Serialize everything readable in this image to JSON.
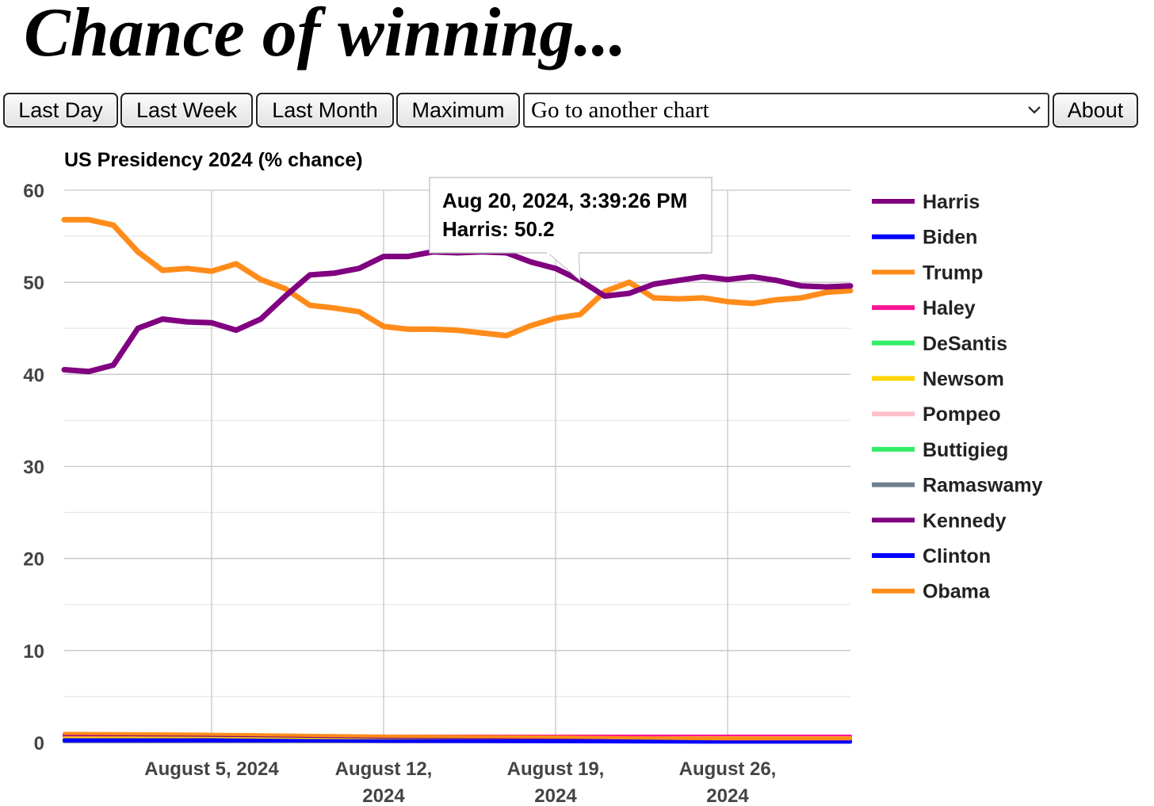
{
  "header": {
    "title": "Chance of winning..."
  },
  "toolbar": {
    "last_day": "Last Day",
    "last_week": "Last Week",
    "last_month": "Last Month",
    "maximum": "Maximum",
    "select_value": "Go to another chart",
    "about": "About"
  },
  "icons": {
    "select_arrow": "chevron-down-icon"
  },
  "chart_data": {
    "type": "line",
    "title": "US Presidency 2024 (% chance)",
    "ylim": [
      0,
      60
    ],
    "yticks": [
      0,
      10,
      20,
      30,
      40,
      50,
      60
    ],
    "xlim": [
      "2024-07-30",
      "2024-08-31"
    ],
    "xticks": [
      {
        "date": "2024-08-05",
        "lines": [
          "August 5, 2024"
        ]
      },
      {
        "date": "2024-08-12",
        "lines": [
          "August 12,",
          "2024"
        ]
      },
      {
        "date": "2024-08-19",
        "lines": [
          "August 19,",
          "2024"
        ]
      },
      {
        "date": "2024-08-26",
        "lines": [
          "August 26,",
          "2024"
        ]
      }
    ],
    "grid": true,
    "legend_position": "right",
    "series": [
      {
        "name": "Harris",
        "color": "#800080",
        "points": [
          [
            "2024-07-30",
            40.5
          ],
          [
            "2024-07-31",
            40.3
          ],
          [
            "2024-08-01",
            41
          ],
          [
            "2024-08-02",
            45
          ],
          [
            "2024-08-03",
            46
          ],
          [
            "2024-08-04",
            45.7
          ],
          [
            "2024-08-05",
            45.6
          ],
          [
            "2024-08-06",
            44.8
          ],
          [
            "2024-08-07",
            46
          ],
          [
            "2024-08-08",
            48.5
          ],
          [
            "2024-08-09",
            50.8
          ],
          [
            "2024-08-10",
            51
          ],
          [
            "2024-08-11",
            51.5
          ],
          [
            "2024-08-12",
            52.8
          ],
          [
            "2024-08-13",
            52.8
          ],
          [
            "2024-08-14",
            53.3
          ],
          [
            "2024-08-15",
            53.2
          ],
          [
            "2024-08-16",
            53.3
          ],
          [
            "2024-08-17",
            53.2
          ],
          [
            "2024-08-18",
            52.2
          ],
          [
            "2024-08-19",
            51.5
          ],
          [
            "2024-08-20",
            50.2
          ],
          [
            "2024-08-21",
            48.5
          ],
          [
            "2024-08-22",
            48.8
          ],
          [
            "2024-08-23",
            49.8
          ],
          [
            "2024-08-24",
            50.2
          ],
          [
            "2024-08-25",
            50.6
          ],
          [
            "2024-08-26",
            50.3
          ],
          [
            "2024-08-27",
            50.6
          ],
          [
            "2024-08-28",
            50.2
          ],
          [
            "2024-08-29",
            49.6
          ],
          [
            "2024-08-30",
            49.5
          ],
          [
            "2024-08-31",
            49.6
          ]
        ]
      },
      {
        "name": "Biden",
        "color": "#0000ff",
        "points": [
          [
            "2024-07-30",
            0.3
          ],
          [
            "2024-08-05",
            0.3
          ],
          [
            "2024-08-12",
            0.15
          ],
          [
            "2024-08-19",
            0.1
          ],
          [
            "2024-08-26",
            0.05
          ],
          [
            "2024-08-31",
            0.05
          ]
        ]
      },
      {
        "name": "Trump",
        "color": "#ff8c1a",
        "points": [
          [
            "2024-07-30",
            56.8
          ],
          [
            "2024-07-31",
            56.8
          ],
          [
            "2024-08-01",
            56.2
          ],
          [
            "2024-08-02",
            53.3
          ],
          [
            "2024-08-03",
            51.3
          ],
          [
            "2024-08-04",
            51.5
          ],
          [
            "2024-08-05",
            51.2
          ],
          [
            "2024-08-06",
            52
          ],
          [
            "2024-08-07",
            50.3
          ],
          [
            "2024-08-08",
            49.3
          ],
          [
            "2024-08-09",
            47.5
          ],
          [
            "2024-08-10",
            47.2
          ],
          [
            "2024-08-11",
            46.8
          ],
          [
            "2024-08-12",
            45.2
          ],
          [
            "2024-08-13",
            44.9
          ],
          [
            "2024-08-14",
            44.9
          ],
          [
            "2024-08-15",
            44.8
          ],
          [
            "2024-08-16",
            44.5
          ],
          [
            "2024-08-17",
            44.2
          ],
          [
            "2024-08-18",
            45.3
          ],
          [
            "2024-08-19",
            46.1
          ],
          [
            "2024-08-20",
            46.5
          ],
          [
            "2024-08-21",
            49
          ],
          [
            "2024-08-22",
            50
          ],
          [
            "2024-08-23",
            48.3
          ],
          [
            "2024-08-24",
            48.2
          ],
          [
            "2024-08-25",
            48.3
          ],
          [
            "2024-08-26",
            47.9
          ],
          [
            "2024-08-27",
            47.7
          ],
          [
            "2024-08-28",
            48.1
          ],
          [
            "2024-08-29",
            48.3
          ],
          [
            "2024-08-30",
            48.9
          ],
          [
            "2024-08-31",
            49.1
          ]
        ]
      },
      {
        "name": "Haley",
        "color": "#ff1493",
        "points": [
          [
            "2024-07-30",
            0.7
          ],
          [
            "2024-08-05",
            0.7
          ],
          [
            "2024-08-12",
            0.7
          ],
          [
            "2024-08-19",
            0.7
          ],
          [
            "2024-08-26",
            0.7
          ],
          [
            "2024-08-31",
            0.7
          ]
        ]
      },
      {
        "name": "DeSantis",
        "color": "#33ee66",
        "points": [
          [
            "2024-07-30",
            0.3
          ],
          [
            "2024-08-31",
            0.3
          ]
        ]
      },
      {
        "name": "Newsom",
        "color": "#ffd400",
        "points": [
          [
            "2024-07-30",
            0.5
          ],
          [
            "2024-08-31",
            0.5
          ]
        ]
      },
      {
        "name": "Pompeo",
        "color": "#ffc0cb",
        "points": [
          [
            "2024-07-30",
            0.1
          ],
          [
            "2024-08-31",
            0.1
          ]
        ]
      },
      {
        "name": "Buttigieg",
        "color": "#33ee66",
        "points": [
          [
            "2024-07-30",
            0.2
          ],
          [
            "2024-08-31",
            0.2
          ]
        ]
      },
      {
        "name": "Ramaswamy",
        "color": "#708090",
        "points": [
          [
            "2024-07-30",
            0.1
          ],
          [
            "2024-08-31",
            0.1
          ]
        ]
      },
      {
        "name": "Kennedy",
        "color": "#800080",
        "points": [
          [
            "2024-07-30",
            0.9
          ],
          [
            "2024-08-05",
            0.8
          ],
          [
            "2024-08-12",
            0.6
          ],
          [
            "2024-08-19",
            0.5
          ],
          [
            "2024-08-26",
            0.4
          ],
          [
            "2024-08-31",
            0.4
          ]
        ]
      },
      {
        "name": "Clinton",
        "color": "#0000ff",
        "points": [
          [
            "2024-07-30",
            0.2
          ],
          [
            "2024-08-31",
            0.2
          ]
        ]
      },
      {
        "name": "Obama",
        "color": "#ff8c1a",
        "points": [
          [
            "2024-07-30",
            1.0
          ],
          [
            "2024-08-05",
            0.9
          ],
          [
            "2024-08-12",
            0.7
          ],
          [
            "2024-08-19",
            0.6
          ],
          [
            "2024-08-26",
            0.4
          ],
          [
            "2024-08-31",
            0.4
          ]
        ]
      }
    ],
    "tooltip": {
      "date": "2024-08-20",
      "value": 50.2,
      "line1": "Aug 20, 2024, 3:39:26 PM",
      "line2": "Harris: 50.2"
    }
  }
}
